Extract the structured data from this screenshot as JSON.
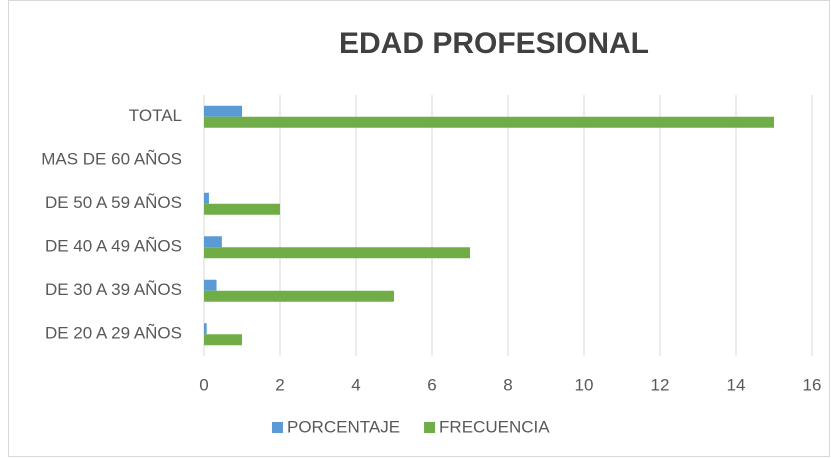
{
  "chart_data": {
    "type": "hbar",
    "title": "EDAD PROFESIONAL",
    "categories": [
      "DE 20 A 29 AÑOS",
      "DE 30 A 39 AÑOS",
      "DE 40 A 49 AÑOS",
      "DE 50 A 59 AÑOS",
      "MAS DE 60 AÑOS",
      "TOTAL"
    ],
    "series": [
      {
        "name": "PORCENTAJE",
        "color": "#5b9bd5",
        "values": [
          0.07,
          0.33,
          0.47,
          0.13,
          0,
          1
        ]
      },
      {
        "name": "FRECUENCIA",
        "color": "#70ad47",
        "values": [
          1,
          5,
          7,
          2,
          0,
          15
        ]
      }
    ],
    "xlim": [
      0,
      16
    ],
    "xticks": [
      0,
      2,
      4,
      6,
      8,
      10,
      12,
      14,
      16
    ],
    "grid": true,
    "legend": "bottom"
  }
}
